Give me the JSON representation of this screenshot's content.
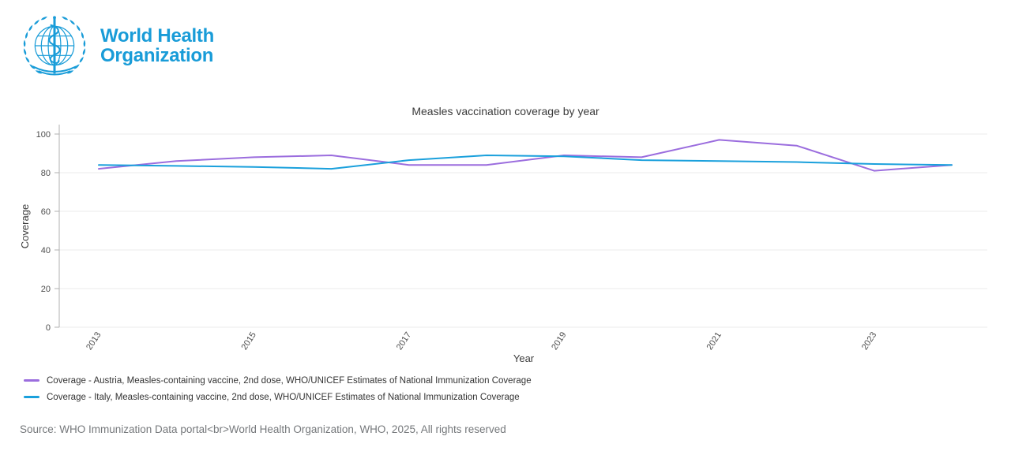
{
  "header": {
    "logo_line1": "World Health",
    "logo_line2": "Organization",
    "brand_color": "#199cd8"
  },
  "chart_data": {
    "type": "line",
    "title": "Measles vaccination coverage by year",
    "xlabel": "Year",
    "ylabel": "Coverage",
    "x": [
      2013,
      2014,
      2015,
      2016,
      2017,
      2018,
      2019,
      2020,
      2021,
      2022,
      2023,
      2024
    ],
    "x_tick_labels": [
      "2013",
      "2015",
      "2017",
      "2019",
      "2021",
      "2023"
    ],
    "y_ticks": [
      0,
      20,
      40,
      60,
      80,
      100
    ],
    "ylim": [
      0,
      105
    ],
    "grid": "horizontal",
    "legend_position": "bottom-left",
    "series": [
      {
        "name": "Coverage - Austria, Measles-containing vaccine, 2nd dose, WHO/UNICEF Estimates of National Immunization Coverage",
        "color": "#9b6dde",
        "values": [
          82,
          86,
          88,
          89,
          84,
          84,
          89,
          88,
          97,
          94,
          81,
          84
        ]
      },
      {
        "name": "Coverage - Italy, Measles-containing vaccine, 2nd dose, WHO/UNICEF Estimates of National Immunization Coverage",
        "color": "#1aa0dc",
        "values": [
          84,
          83.5,
          83,
          82,
          86.5,
          89,
          88.5,
          86.5,
          86,
          85.5,
          84.5,
          84
        ]
      }
    ]
  },
  "footer": {
    "source": "Source: WHO Immunization Data portal<br>World Health Organization, WHO, 2025, All rights reserved"
  }
}
